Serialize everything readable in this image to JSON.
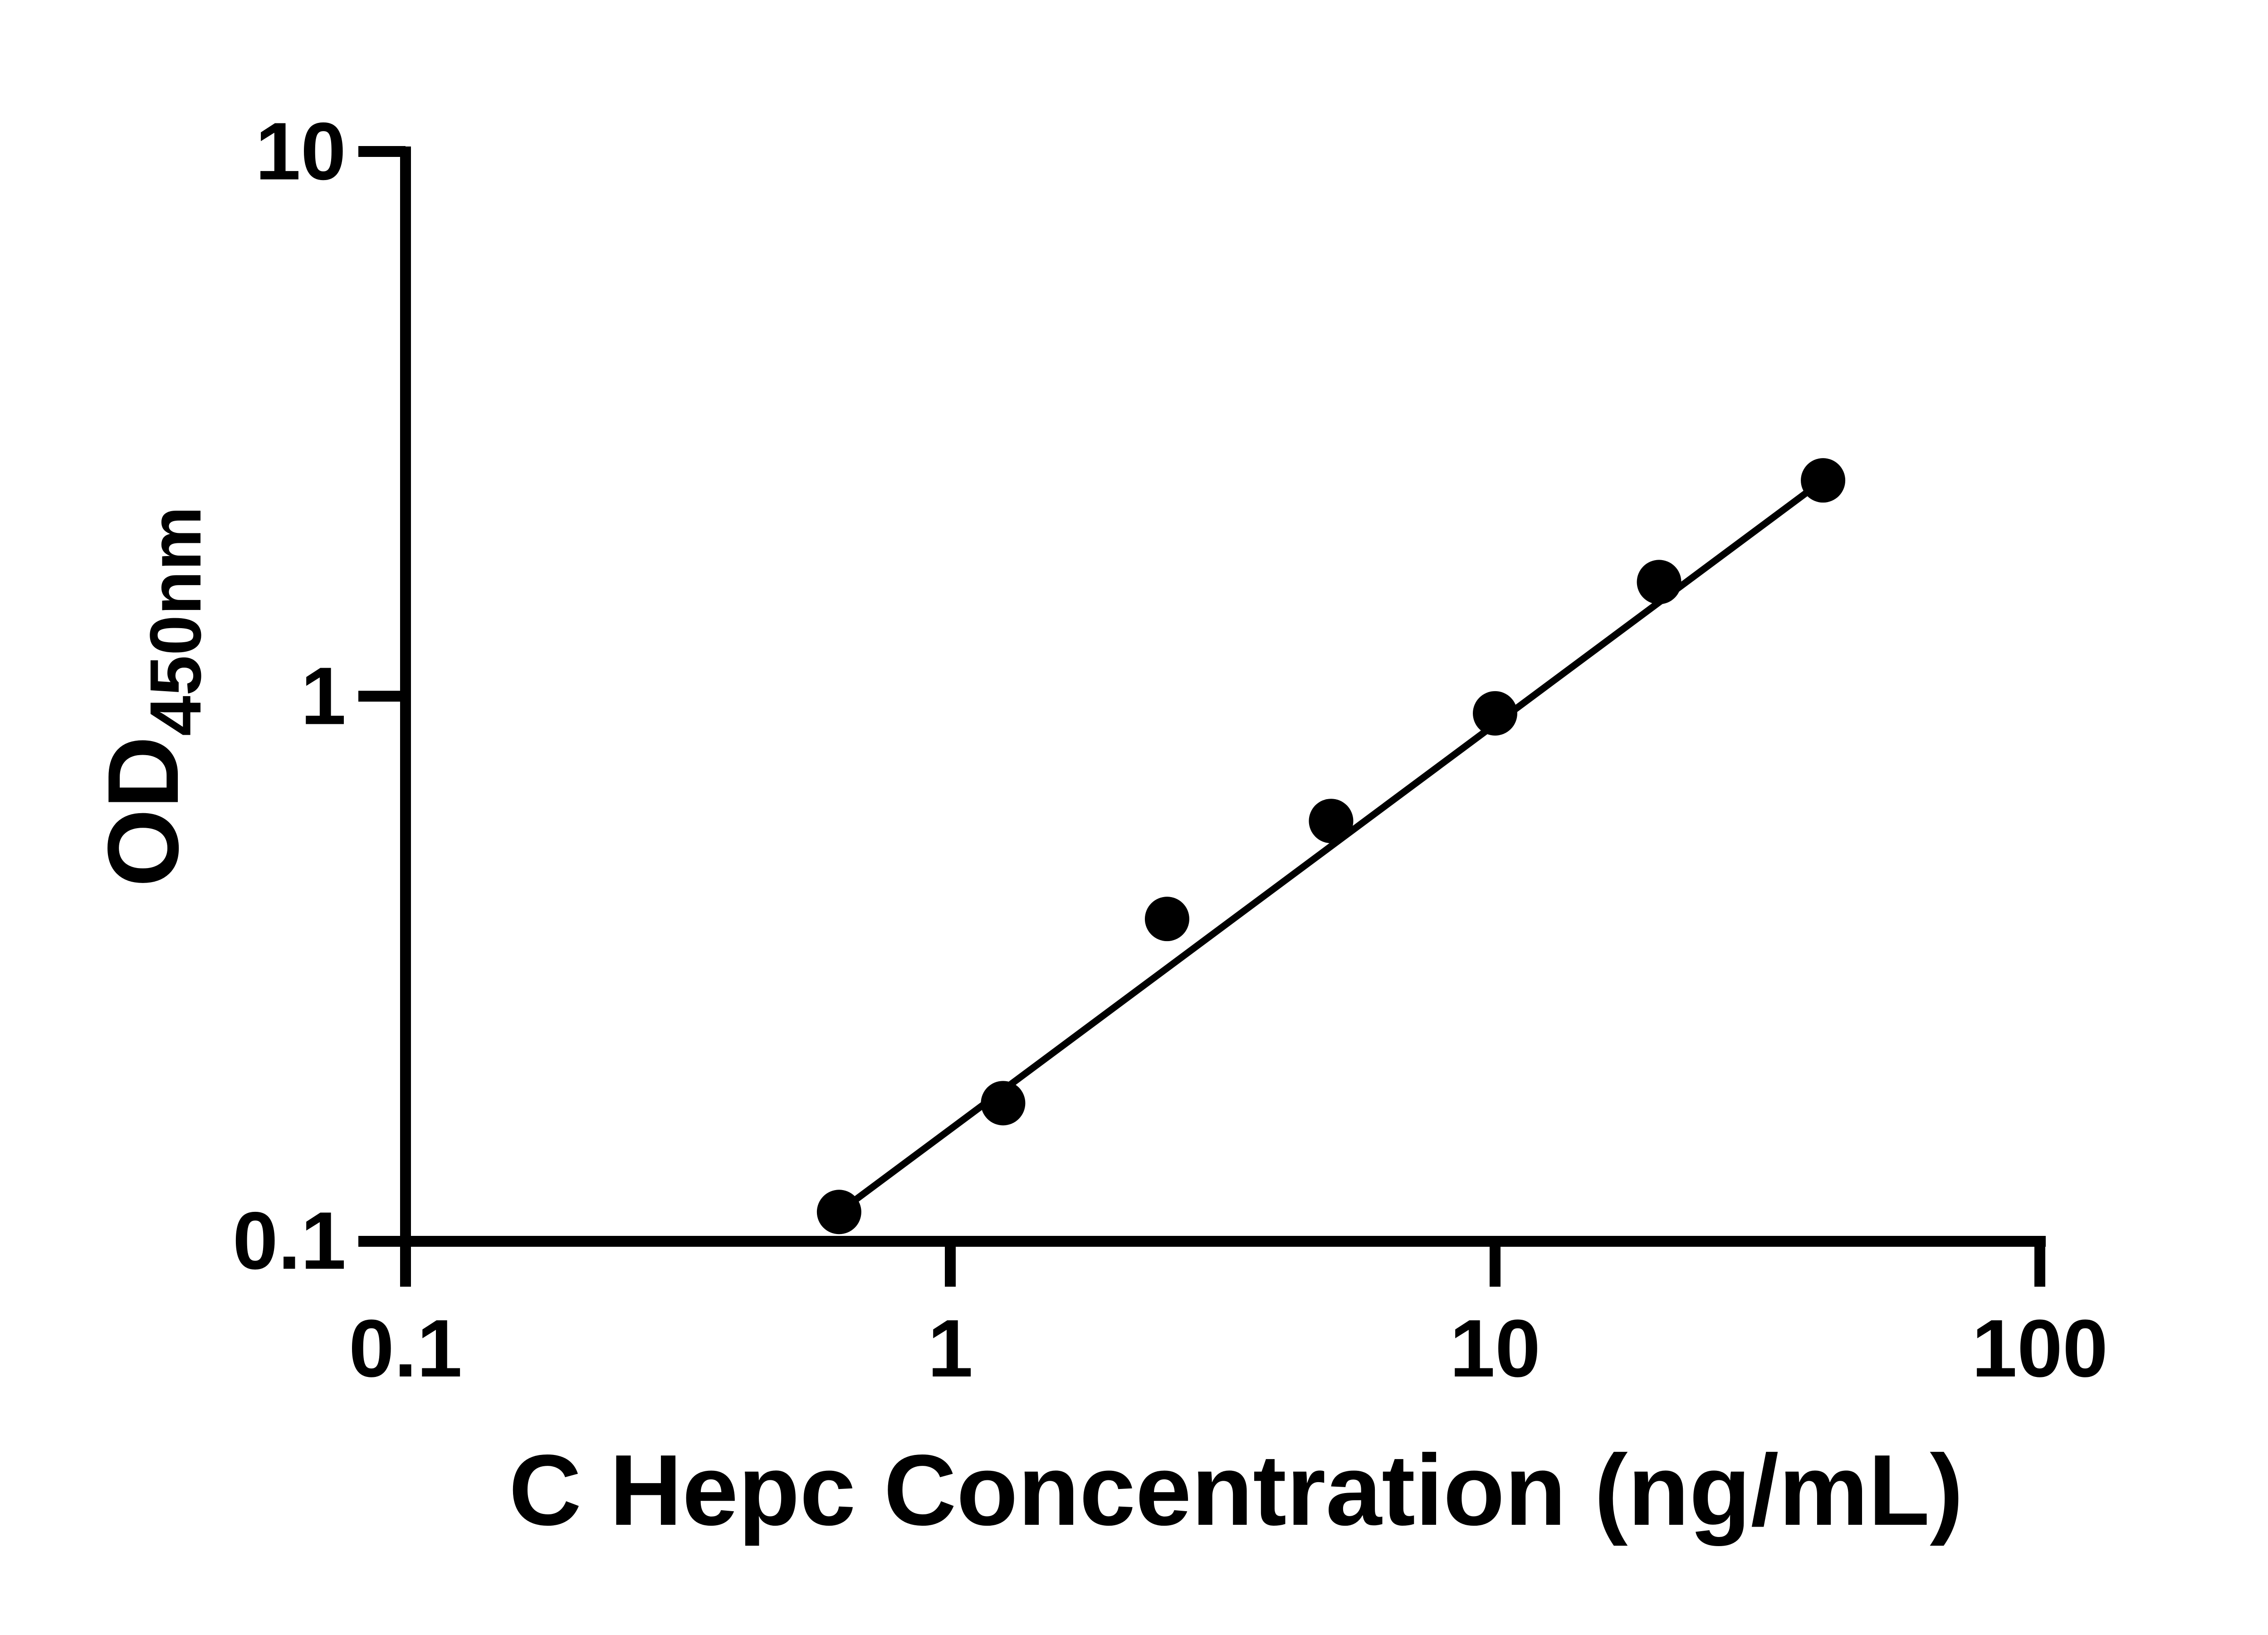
{
  "figure": {
    "background_color": "#ffffff",
    "ink_color": "#000000"
  },
  "chart_data": {
    "type": "scatter",
    "title": "",
    "xlabel": "C Hepc Concentration (ng/mL)",
    "ylabel_main": "OD",
    "ylabel_sub": "450nm",
    "x_scale": "log10",
    "y_scale": "log10",
    "xlim": [
      0.1,
      100
    ],
    "ylim": [
      0.1,
      10
    ],
    "grid": "off",
    "legend": "none",
    "x_ticks": [
      {
        "value": 0.1,
        "label": "0.1"
      },
      {
        "value": 1,
        "label": "1"
      },
      {
        "value": 10,
        "label": "10"
      },
      {
        "value": 100,
        "label": "100"
      }
    ],
    "y_ticks": [
      {
        "value": 10,
        "label": "10"
      },
      {
        "value": 1,
        "label": "1"
      },
      {
        "value": 0.1,
        "label": "0.1"
      }
    ],
    "series": [
      {
        "name": "standard-curve",
        "marker": "filled-circle",
        "color": "#000000",
        "points": [
          {
            "x": 0.625,
            "y": 0.113
          },
          {
            "x": 1.25,
            "y": 0.179
          },
          {
            "x": 2.5,
            "y": 0.39
          },
          {
            "x": 5,
            "y": 0.59
          },
          {
            "x": 10,
            "y": 0.93
          },
          {
            "x": 20,
            "y": 1.62
          },
          {
            "x": 40,
            "y": 2.49
          }
        ]
      }
    ],
    "trend_line": {
      "fit": "linear-on-loglog",
      "from": {
        "x": 0.625,
        "y": 0.113
      },
      "to": {
        "x": 40,
        "y": 2.49
      }
    }
  }
}
